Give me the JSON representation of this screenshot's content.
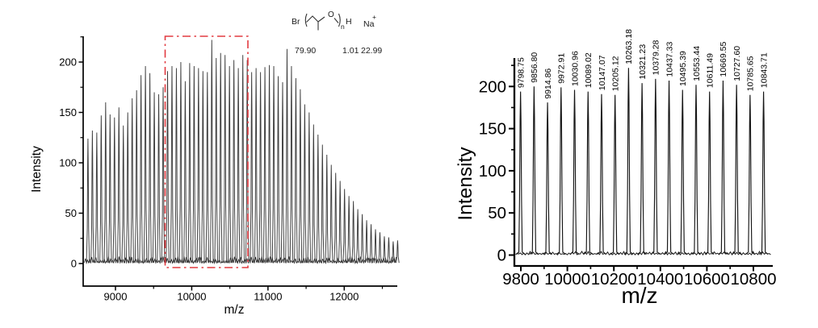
{
  "figure": {
    "background": "#ffffff",
    "spectrum_color": "#2e2e2e",
    "axis_color": "#000000"
  },
  "chart_data": [
    {
      "id": "full-spectrum",
      "type": "line",
      "title": "",
      "xlabel": "m/z",
      "ylabel": "Intensity",
      "xlim": [
        8590,
        12720
      ],
      "ylim": [
        0,
        225
      ],
      "x_ticks": [
        9000,
        10000,
        11000,
        12000
      ],
      "x_minor_ticks": [
        9500,
        10500,
        11500,
        12500
      ],
      "y_ticks": [
        0,
        50,
        100,
        150,
        200
      ],
      "y_minor_ticks": [
        25,
        75,
        125,
        175,
        225
      ],
      "grid": false,
      "peak_spacing": 58.05,
      "peaks": [
        [
          8639,
          124
        ],
        [
          8697,
          132
        ],
        [
          8755,
          130
        ],
        [
          8813,
          147
        ],
        [
          8871,
          160
        ],
        [
          8929,
          148
        ],
        [
          8987,
          145
        ],
        [
          9045,
          155
        ],
        [
          9103,
          137
        ],
        [
          9161,
          150
        ],
        [
          9219,
          164
        ],
        [
          9277,
          172
        ],
        [
          9335,
          187
        ],
        [
          9393,
          196
        ],
        [
          9451,
          189
        ],
        [
          9509,
          170
        ],
        [
          9567,
          168
        ],
        [
          9625,
          175
        ],
        [
          9683,
          191
        ],
        [
          9741,
          196
        ],
        [
          9799,
          194
        ],
        [
          9857,
          200
        ],
        [
          9915,
          181
        ],
        [
          9973,
          199
        ],
        [
          10031,
          196
        ],
        [
          10089,
          194
        ],
        [
          10147,
          191
        ],
        [
          10205,
          190
        ],
        [
          10263,
          222
        ],
        [
          10321,
          204
        ],
        [
          10379,
          209
        ],
        [
          10437,
          207
        ],
        [
          10495,
          196
        ],
        [
          10553,
          202
        ],
        [
          10611,
          194
        ],
        [
          10670,
          207
        ],
        [
          10728,
          202
        ],
        [
          10786,
          190
        ],
        [
          10844,
          194
        ],
        [
          10902,
          190
        ],
        [
          10960,
          195
        ],
        [
          11018,
          197
        ],
        [
          11076,
          196
        ],
        [
          11134,
          186
        ],
        [
          11192,
          180
        ],
        [
          11250,
          213
        ],
        [
          11308,
          196
        ],
        [
          11366,
          184
        ],
        [
          11424,
          173
        ],
        [
          11482,
          158
        ],
        [
          11540,
          150
        ],
        [
          11598,
          138
        ],
        [
          11656,
          128
        ],
        [
          11714,
          118
        ],
        [
          11772,
          108
        ],
        [
          11830,
          98
        ],
        [
          11888,
          90
        ],
        [
          11946,
          82
        ],
        [
          12004,
          74
        ],
        [
          12062,
          67
        ],
        [
          12120,
          62
        ],
        [
          12178,
          54
        ],
        [
          12236,
          49
        ],
        [
          12294,
          43
        ],
        [
          12352,
          39
        ],
        [
          12410,
          34
        ],
        [
          12468,
          31
        ],
        [
          12526,
          27
        ],
        [
          12584,
          26
        ],
        [
          12642,
          22
        ],
        [
          12700,
          23
        ]
      ],
      "highlight_box": {
        "mz_start": 9660,
        "mz_end": 10745,
        "color": "#e23b41",
        "line_style": "dash-dot"
      },
      "annotation": {
        "structure": {
          "br": "Br",
          "o": "O",
          "n": "n",
          "h": "H",
          "na": "Na",
          "charge": "+"
        },
        "masses": {
          "br": "79.90",
          "h": "1.01",
          "na": "22.99"
        }
      }
    },
    {
      "id": "zoom-spectrum",
      "type": "line",
      "title": "",
      "xlabel": "m/z",
      "ylabel": "Intensity",
      "xlim": [
        9770,
        10885
      ],
      "ylim": [
        0,
        230
      ],
      "x_ticks": [
        9800,
        10000,
        10200,
        10400,
        10600,
        10800
      ],
      "x_minor_ticks": [
        9900,
        10100,
        10300,
        10500,
        10700
      ],
      "y_ticks": [
        0,
        50,
        100,
        150,
        200
      ],
      "y_minor_ticks": [
        25,
        75,
        125,
        175,
        225
      ],
      "grid": false,
      "peak_spacing": 58.05,
      "peaks": [
        [
          "9798.75",
          194
        ],
        [
          "9856.80",
          200
        ],
        [
          "9914.86",
          181
        ],
        [
          "9972.91",
          199
        ],
        [
          "10030.96",
          196
        ],
        [
          "10089.02",
          194
        ],
        [
          "10147.07",
          191
        ],
        [
          "10205.12",
          190
        ],
        [
          "10263.18",
          222
        ],
        [
          "10321.23",
          204
        ],
        [
          "10379.28",
          209
        ],
        [
          "10437.33",
          207
        ],
        [
          "10495.39",
          196
        ],
        [
          "10553.44",
          202
        ],
        [
          "10611.49",
          194
        ],
        [
          "10669.55",
          207
        ],
        [
          "10727.60",
          202
        ],
        [
          "10785.65",
          190
        ],
        [
          "10843.71",
          194
        ]
      ]
    }
  ]
}
